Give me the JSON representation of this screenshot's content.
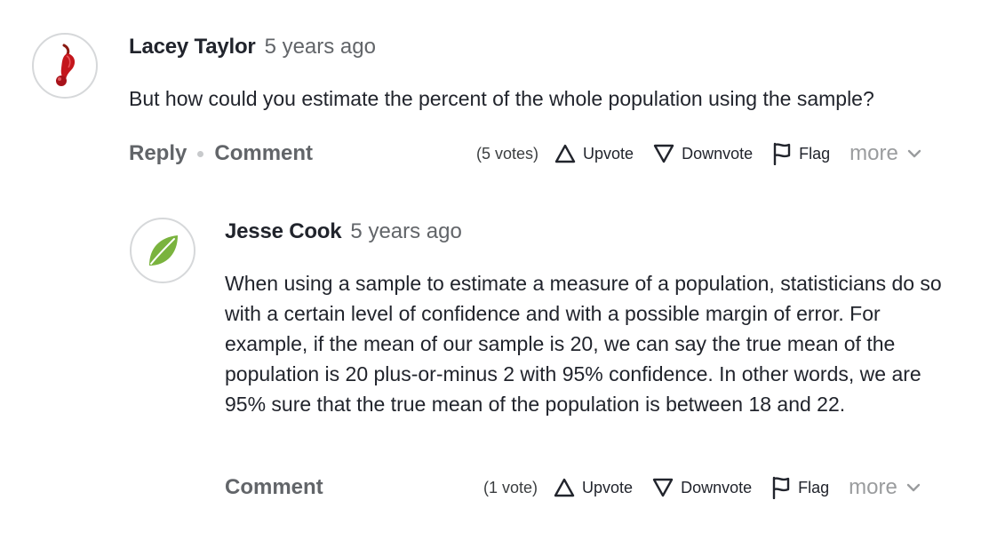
{
  "comments": [
    {
      "author": "Lacey Taylor",
      "timestamp": "5 years ago",
      "avatar_icon": "red-pepper-icon",
      "text": "But how could you estimate the percent of the whole population using the sample?",
      "reply_label": "Reply",
      "comment_label": "Comment",
      "votes": "(5 votes)",
      "upvote_label": "Upvote",
      "downvote_label": "Downvote",
      "flag_label": "Flag",
      "more_label": "more"
    },
    {
      "author": "Jesse Cook",
      "timestamp": "5 years ago",
      "avatar_icon": "leaf-icon",
      "text": "When using a sample to estimate a measure of a population, statisticians do so with a certain level of confidence and with a possible margin of error. For example, if the mean of our sample is 20, we can say the true mean of the population is 20 plus-or-minus 2 with 95% confidence. In other words, we are 95% sure that the true mean of the population is between 18 and 22.",
      "comment_label": "Comment",
      "votes": "(1 vote)",
      "upvote_label": "Upvote",
      "downvote_label": "Downvote",
      "flag_label": "Flag",
      "more_label": "more"
    }
  ],
  "colors": {
    "text": "#21242c",
    "muted": "#626569",
    "more": "#9a9c9e",
    "avatar_border": "#d6d8da",
    "pepper_red": "#c4161c",
    "leaf_green": "#7ab33e"
  }
}
